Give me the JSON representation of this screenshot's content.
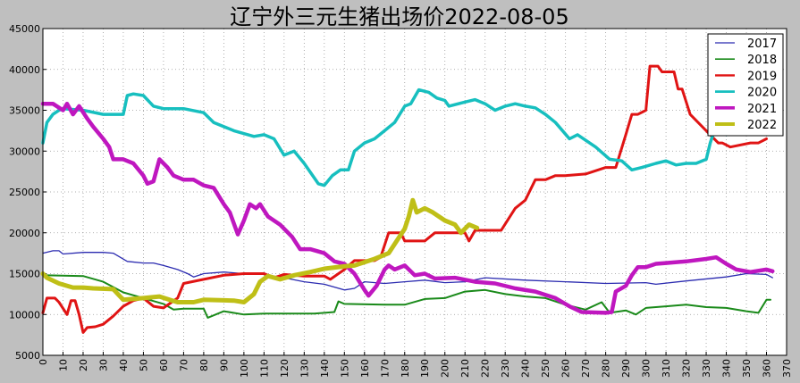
{
  "chart_data": {
    "type": "line",
    "title": "辽宁外三元生猪出场价2022-08-05",
    "xlabel": "",
    "ylabel": "",
    "xlim": [
      0,
      370
    ],
    "ylim": [
      5000,
      45000
    ],
    "xticks": [
      0,
      10,
      20,
      30,
      40,
      50,
      60,
      70,
      80,
      90,
      100,
      110,
      120,
      130,
      140,
      150,
      160,
      170,
      180,
      190,
      200,
      210,
      220,
      230,
      240,
      250,
      260,
      270,
      280,
      290,
      300,
      310,
      320,
      330,
      340,
      350,
      360,
      370
    ],
    "yticks": [
      5000,
      10000,
      15000,
      20000,
      25000,
      30000,
      35000,
      40000,
      45000
    ],
    "grid": true,
    "legend_position": "top-right",
    "series": [
      {
        "name": "2017",
        "color": "#2b2bb0",
        "width": 1.3,
        "x": [
          0,
          5,
          8,
          10,
          20,
          30,
          35,
          42,
          50,
          55,
          60,
          67,
          72,
          75,
          80,
          90,
          100,
          110,
          120,
          130,
          140,
          150,
          155,
          160,
          170,
          180,
          190,
          200,
          210,
          220,
          240,
          260,
          280,
          300,
          305,
          320,
          340,
          350,
          360,
          363
        ],
        "y": [
          17500,
          17800,
          17800,
          17400,
          17600,
          17600,
          17500,
          16500,
          16300,
          16300,
          16000,
          15500,
          15000,
          14600,
          15000,
          15200,
          15000,
          14900,
          14500,
          14000,
          13700,
          13000,
          13200,
          14000,
          13800,
          14000,
          14200,
          13900,
          14000,
          14500,
          14200,
          14000,
          13800,
          13900,
          13700,
          14100,
          14600,
          15000,
          14900,
          14500
        ]
      },
      {
        "name": "2018",
        "color": "#1a8a1a",
        "width": 2,
        "x": [
          0,
          20,
          30,
          40,
          50,
          60,
          65,
          70,
          80,
          82,
          90,
          100,
          110,
          135,
          145,
          147,
          150,
          170,
          180,
          190,
          200,
          210,
          220,
          230,
          240,
          250,
          260,
          270,
          278,
          282,
          290,
          295,
          300,
          310,
          320,
          330,
          340,
          350,
          356,
          360,
          362
        ],
        "y": [
          14800,
          14700,
          14000,
          12700,
          12000,
          11300,
          10600,
          10700,
          10700,
          9600,
          10400,
          10000,
          10100,
          10100,
          10300,
          11600,
          11300,
          11200,
          11200,
          11900,
          12000,
          12800,
          13000,
          12500,
          12200,
          12000,
          11200,
          10600,
          11500,
          10200,
          10500,
          10000,
          10800,
          11000,
          11200,
          10900,
          10800,
          10400,
          10200,
          11800,
          11800
        ]
      },
      {
        "name": "2019",
        "color": "#e01414",
        "width": 3,
        "x": [
          0,
          2,
          6,
          8,
          12,
          14,
          16,
          18,
          20,
          22,
          26,
          30,
          35,
          40,
          45,
          50,
          55,
          60,
          67,
          70,
          80,
          90,
          100,
          110,
          115,
          120,
          130,
          140,
          143,
          150,
          155,
          165,
          168,
          172,
          178,
          180,
          190,
          195,
          210,
          212,
          215,
          228,
          235,
          240,
          245,
          250,
          255,
          260,
          270,
          280,
          285,
          290,
          293,
          296,
          300,
          302,
          306,
          308,
          314,
          316,
          318,
          322,
          324,
          336,
          338,
          342,
          352,
          356,
          360
        ],
        "y": [
          10200,
          12000,
          12000,
          11500,
          10000,
          11700,
          11700,
          10000,
          7800,
          8400,
          8500,
          8800,
          9800,
          11000,
          11700,
          12000,
          11000,
          10800,
          12000,
          13800,
          14300,
          14800,
          15000,
          15000,
          14500,
          14900,
          14700,
          14700,
          14300,
          15500,
          16600,
          16600,
          17000,
          20000,
          20000,
          19000,
          19000,
          20000,
          20000,
          19000,
          20300,
          20300,
          23000,
          24000,
          26500,
          26500,
          27000,
          27000,
          27200,
          28000,
          28000,
          32000,
          34500,
          34500,
          35000,
          40400,
          40400,
          39700,
          39700,
          37600,
          37600,
          34500,
          34000,
          31000,
          31000,
          30500,
          31000,
          31000,
          31500
        ]
      },
      {
        "name": "2020",
        "color": "#17bfbf",
        "width": 3.5,
        "x": [
          0,
          2,
          5,
          8,
          10,
          20,
          30,
          40,
          42,
          45,
          50,
          55,
          60,
          70,
          80,
          85,
          95,
          105,
          110,
          115,
          120,
          125,
          130,
          137,
          140,
          144,
          148,
          152,
          155,
          160,
          165,
          170,
          175,
          180,
          183,
          187,
          192,
          196,
          200,
          202,
          210,
          215,
          220,
          225,
          230,
          235,
          240,
          245,
          250,
          255,
          262,
          266,
          275,
          282,
          288,
          293,
          298,
          305,
          310,
          315,
          320,
          325,
          330,
          332,
          336,
          340
        ],
        "y": [
          31000,
          33500,
          34500,
          35000,
          35200,
          35000,
          34500,
          34500,
          36800,
          37000,
          36800,
          35500,
          35200,
          35200,
          34700,
          33500,
          32500,
          31800,
          32000,
          31500,
          29500,
          30000,
          28500,
          26000,
          25800,
          27000,
          27700,
          27700,
          30000,
          31000,
          31500,
          32500,
          33500,
          35500,
          35800,
          37500,
          37200,
          36500,
          36200,
          35500,
          36000,
          36300,
          35800,
          35000,
          35500,
          35800,
          35500,
          35300,
          34500,
          33500,
          31500,
          32000,
          30500,
          29000,
          28800,
          27700,
          28000,
          28500,
          28800,
          28300,
          28500,
          28500,
          29000,
          31000,
          34000,
          32000
        ]
      },
      {
        "name": "2021",
        "color": "#bf17bf",
        "width": 4.5,
        "x": [
          0,
          5,
          10,
          12,
          15,
          18,
          22,
          25,
          30,
          33,
          35,
          40,
          45,
          50,
          52,
          55,
          58,
          62,
          65,
          70,
          75,
          80,
          85,
          90,
          93,
          97,
          100,
          103,
          106,
          108,
          112,
          118,
          124,
          128,
          133,
          140,
          145,
          150,
          155,
          160,
          162,
          166,
          170,
          172,
          175,
          180,
          185,
          190,
          195,
          205,
          215,
          225,
          235,
          245,
          255,
          262,
          268,
          280,
          283,
          285,
          290,
          293,
          296,
          300,
          305,
          310,
          320,
          330,
          335,
          340,
          345,
          352,
          360,
          363
        ],
        "y": [
          35800,
          35800,
          35000,
          35800,
          34500,
          35500,
          34000,
          33000,
          31500,
          30500,
          29000,
          29000,
          28500,
          27000,
          26000,
          26300,
          29000,
          28000,
          27000,
          26500,
          26500,
          25800,
          25500,
          23500,
          22500,
          19800,
          21500,
          23500,
          23000,
          23500,
          22000,
          21000,
          19500,
          18000,
          18000,
          17500,
          16500,
          16200,
          15000,
          13000,
          12300,
          13500,
          15500,
          16000,
          15500,
          16000,
          14800,
          15000,
          14400,
          14500,
          14000,
          13800,
          13200,
          12800,
          12000,
          11000,
          10300,
          10200,
          10300,
          12800,
          13500,
          14800,
          15800,
          15800,
          16200,
          16300,
          16500,
          16800,
          17000,
          16200,
          15500,
          15200,
          15500,
          15300
        ]
      },
      {
        "name": "2022",
        "color": "#bfbf17",
        "width": 5,
        "x": [
          0,
          2,
          8,
          15,
          20,
          25,
          35,
          40,
          50,
          58,
          63,
          67,
          75,
          80,
          95,
          100,
          105,
          108,
          112,
          118,
          125,
          133,
          140,
          150,
          155,
          165,
          172,
          176,
          180,
          182,
          184,
          186,
          190,
          194,
          200,
          205,
          208,
          212,
          216
        ],
        "y": [
          15000,
          14500,
          13800,
          13300,
          13300,
          13200,
          13100,
          11800,
          12000,
          12200,
          11800,
          11500,
          11500,
          11800,
          11700,
          11500,
          12500,
          14000,
          14700,
          14300,
          14800,
          15200,
          15600,
          15900,
          16000,
          16800,
          17500,
          19000,
          20500,
          22000,
          24000,
          22500,
          23000,
          22500,
          21500,
          21000,
          20000,
          21000,
          20600
        ]
      }
    ]
  }
}
